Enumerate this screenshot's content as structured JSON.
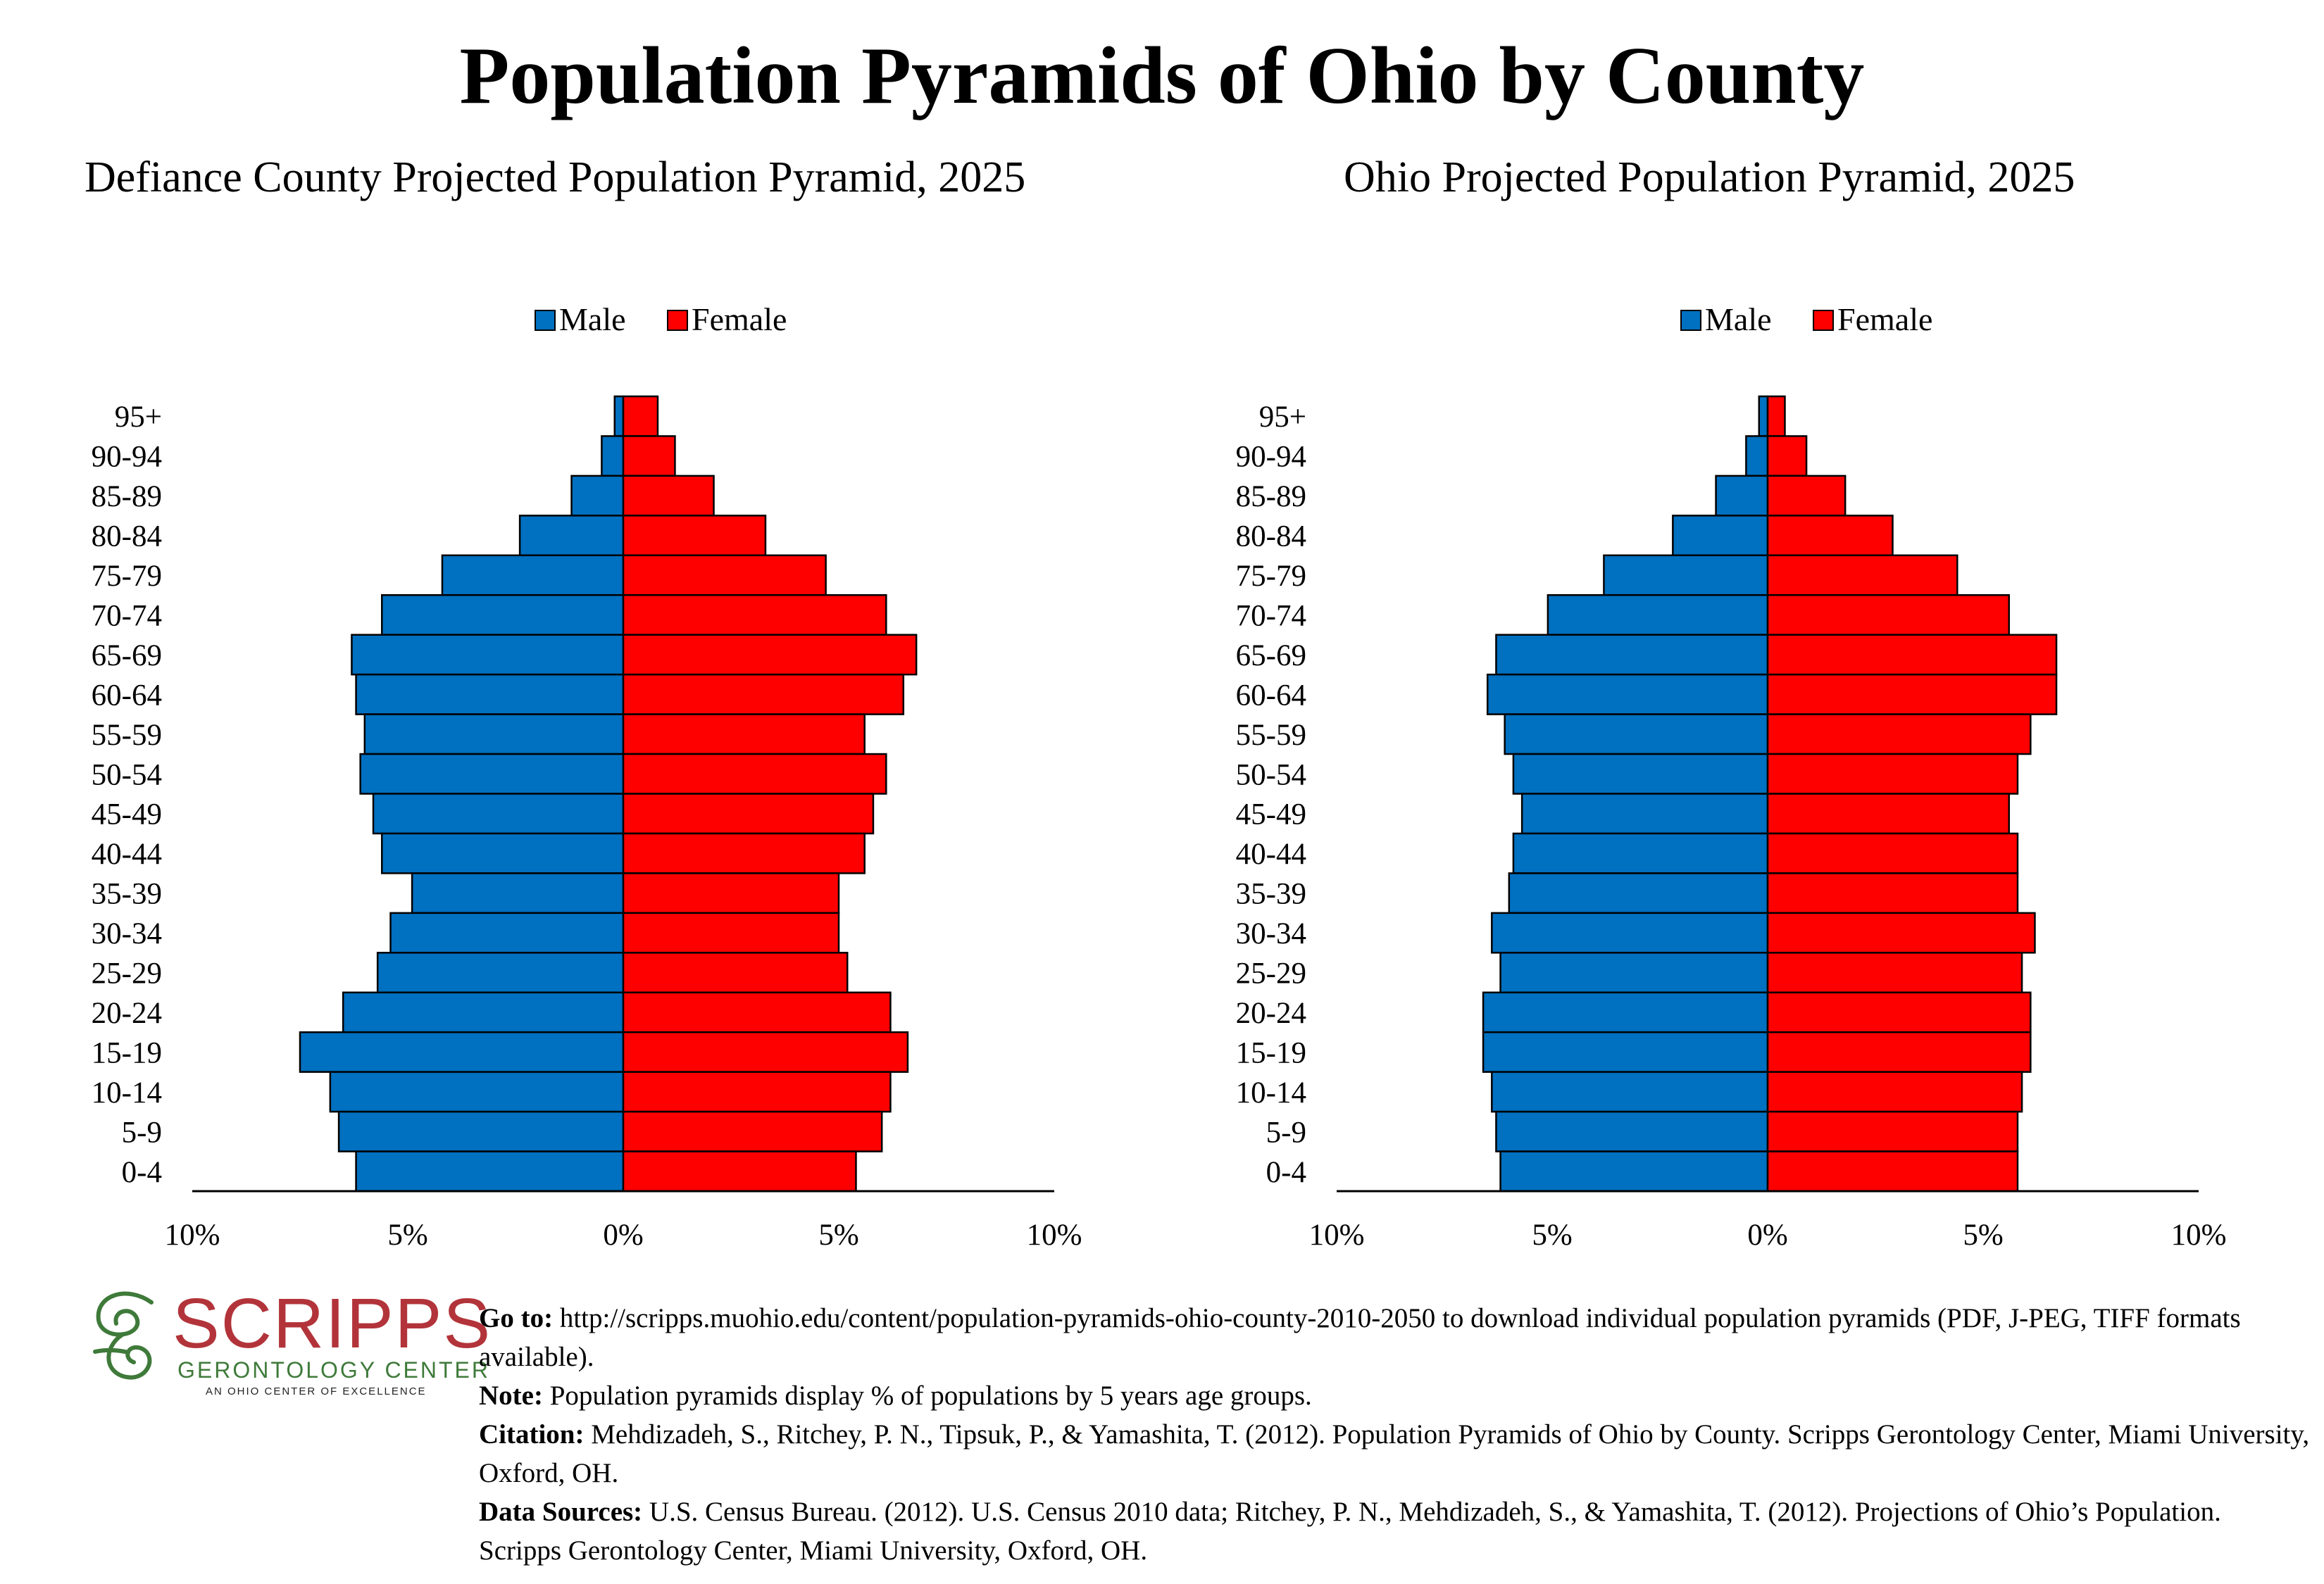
{
  "title": "Population Pyramids of Ohio by County",
  "colors": {
    "male": "#0070C0",
    "female": "#FF0000"
  },
  "chart_data": [
    {
      "type": "bar",
      "title": "Defiance County Projected Population Pyramid, 2025",
      "legend": [
        "Male",
        "Female"
      ],
      "legend_position": "top-center",
      "categories": [
        "95+",
        "90-94",
        "85-89",
        "80-84",
        "75-79",
        "70-74",
        "65-69",
        "60-64",
        "55-59",
        "50-54",
        "45-49",
        "40-44",
        "35-39",
        "30-34",
        "25-29",
        "20-24",
        "15-19",
        "10-14",
        "5-9",
        "0-4"
      ],
      "series": [
        {
          "name": "Male",
          "values": [
            0.2,
            0.5,
            1.2,
            2.4,
            4.2,
            5.6,
            6.3,
            6.2,
            6.0,
            6.1,
            5.8,
            5.6,
            4.9,
            5.4,
            5.7,
            6.5,
            7.5,
            6.8,
            6.6,
            6.2
          ]
        },
        {
          "name": "Female",
          "values": [
            0.8,
            1.2,
            2.1,
            3.3,
            4.7,
            6.1,
            6.8,
            6.5,
            5.6,
            6.1,
            5.8,
            5.6,
            5.0,
            5.0,
            5.2,
            6.2,
            6.6,
            6.2,
            6.0,
            5.4
          ]
        }
      ],
      "xticks": [
        "10%",
        "5%",
        "0%",
        "5%",
        "10%"
      ],
      "xlim": [
        -10,
        10
      ]
    },
    {
      "type": "bar",
      "title": "Ohio Projected Population Pyramid, 2025",
      "legend": [
        "Male",
        "Female"
      ],
      "legend_position": "top-center",
      "categories": [
        "95+",
        "90-94",
        "85-89",
        "80-84",
        "75-79",
        "70-74",
        "65-69",
        "60-64",
        "55-59",
        "50-54",
        "45-49",
        "40-44",
        "35-39",
        "30-34",
        "25-29",
        "20-24",
        "15-19",
        "10-14",
        "5-9",
        "0-4"
      ],
      "series": [
        {
          "name": "Male",
          "values": [
            0.2,
            0.5,
            1.2,
            2.2,
            3.8,
            5.1,
            6.3,
            6.5,
            6.1,
            5.9,
            5.7,
            5.9,
            6.0,
            6.4,
            6.2,
            6.6,
            6.6,
            6.4,
            6.3,
            6.2
          ]
        },
        {
          "name": "Female",
          "values": [
            0.4,
            0.9,
            1.8,
            2.9,
            4.4,
            5.6,
            6.7,
            6.7,
            6.1,
            5.8,
            5.6,
            5.8,
            5.8,
            6.2,
            5.9,
            6.1,
            6.1,
            5.9,
            5.8,
            5.8
          ]
        }
      ],
      "xticks": [
        "10%",
        "5%",
        "0%",
        "5%",
        "10%"
      ],
      "xlim": [
        -10,
        10
      ]
    }
  ],
  "logo": {
    "name": "SCRIPPS",
    "subtitle": "GERONTOLOGY CENTER",
    "tagline": "AN OHIO CENTER OF EXCELLENCE"
  },
  "footer": {
    "goto_label": "Go to:",
    "goto_text": " http://scripps.muohio.edu/content/population-pyramids-ohio-county-2010-2050 to download individual population pyramids (PDF, J-PEG, TIFF formats available).",
    "note_label": "Note:",
    "note_text": " Population pyramids display % of populations by 5 years age groups.",
    "citation_label": "Citation:",
    "citation_text": " Mehdizadeh, S., Ritchey, P. N., Tipsuk, P., & Yamashita, T. (2012). Population Pyramids of Ohio by County. Scripps Gerontology Center, Miami University, Oxford, OH.",
    "sources_label": "Data Sources:",
    "sources_text": " U.S. Census Bureau. (2012). U.S. Census 2010 data; Ritchey, P. N., Mehdizadeh, S., & Yamashita, T. (2012). Projections of Ohio’s Population. Scripps Gerontology Center, Miami University, Oxford, OH."
  }
}
